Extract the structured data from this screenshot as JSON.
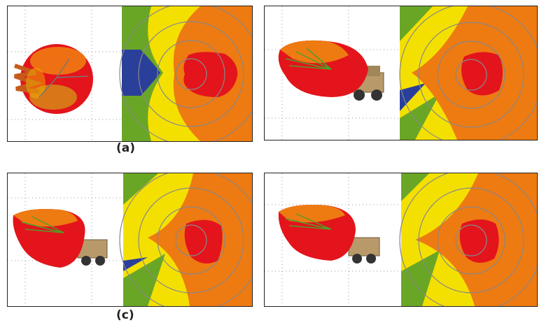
{
  "figure": {
    "panels": [
      {
        "id": "a",
        "caption": "(a)",
        "has_vehicle": false
      },
      {
        "id": "b",
        "caption": "",
        "has_vehicle": true
      },
      {
        "id": "c",
        "caption": "(c)",
        "has_vehicle": true
      },
      {
        "id": "d",
        "caption": "",
        "has_vehicle": true
      }
    ],
    "colors": {
      "red": "#e3141b",
      "orange": "#ee7a12",
      "yellow": "#f4e000",
      "green": "#6aa626",
      "blue": "#2a3f9a",
      "grid": "#888888",
      "vehicle": "#b89a6a"
    },
    "icons": [
      "3d-radiation-pattern-icon",
      "vehicle-icon",
      "polar-grid-icon"
    ]
  }
}
